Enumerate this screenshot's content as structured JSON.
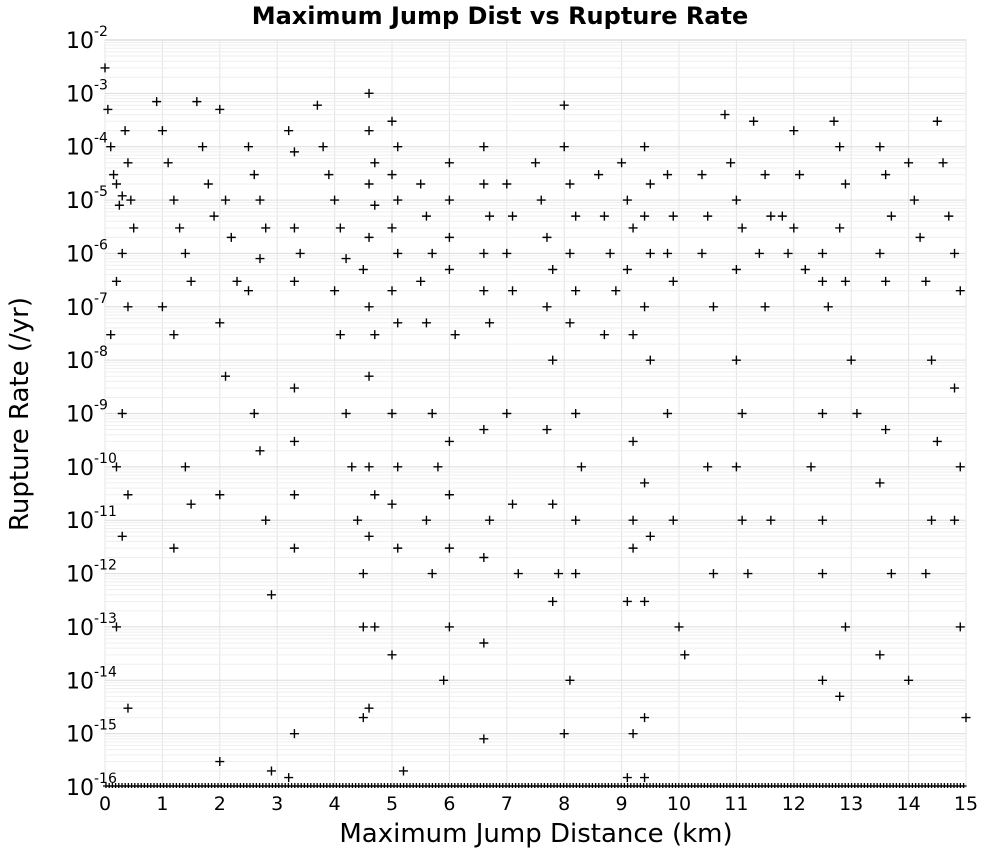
{
  "chart_data": {
    "type": "scatter",
    "title": "Maximum Jump Dist vs Rupture Rate",
    "xlabel": "Maximum Jump Distance (km)",
    "ylabel": "Rupture Rate (/yr)",
    "xlim": [
      0,
      15
    ],
    "ylim": [
      1e-16,
      0.01
    ],
    "y_scale": "log",
    "grid": true,
    "legend": "none",
    "marker": "plus",
    "marker_color": "#000000",
    "x_ticks": [
      "0",
      "1",
      "2",
      "3",
      "4",
      "5",
      "6",
      "7",
      "8",
      "9",
      "10",
      "11",
      "12",
      "13",
      "14",
      "15"
    ],
    "y_ticks": [
      {
        "base": "10",
        "exp": "-2"
      },
      {
        "base": "10",
        "exp": "-3"
      },
      {
        "base": "10",
        "exp": "-4"
      },
      {
        "base": "10",
        "exp": "-5"
      },
      {
        "base": "10",
        "exp": "-6"
      },
      {
        "base": "10",
        "exp": "-7"
      },
      {
        "base": "10",
        "exp": "-8"
      },
      {
        "base": "10",
        "exp": "-9"
      },
      {
        "base": "10",
        "exp": "-10"
      },
      {
        "base": "10",
        "exp": "-11"
      },
      {
        "base": "10",
        "exp": "-12"
      },
      {
        "base": "10",
        "exp": "-13"
      },
      {
        "base": "10",
        "exp": "-14"
      },
      {
        "base": "10",
        "exp": "-15"
      },
      {
        "base": "10",
        "exp": "-16"
      }
    ],
    "points": [
      [
        0.0,
        0.003
      ],
      [
        0.05,
        0.0005
      ],
      [
        0.1,
        0.0001
      ],
      [
        0.15,
        3e-05
      ],
      [
        0.2,
        2e-05
      ],
      [
        0.25,
        8e-06
      ],
      [
        0.3,
        1.2e-05
      ],
      [
        0.35,
        0.0002
      ],
      [
        0.4,
        5e-05
      ],
      [
        0.45,
        1e-05
      ],
      [
        0.5,
        3e-06
      ],
      [
        0.3,
        1e-06
      ],
      [
        0.2,
        3e-07
      ],
      [
        0.4,
        1e-07
      ],
      [
        0.1,
        3e-08
      ],
      [
        0.3,
        1e-09
      ],
      [
        0.2,
        1e-10
      ],
      [
        0.4,
        3e-11
      ],
      [
        0.3,
        5e-12
      ],
      [
        0.2,
        1e-13
      ],
      [
        0.4,
        3e-15
      ],
      [
        0.9,
        0.0007
      ],
      [
        1.0,
        0.0002
      ],
      [
        1.1,
        5e-05
      ],
      [
        1.2,
        1e-05
      ],
      [
        1.3,
        3e-06
      ],
      [
        1.4,
        1e-06
      ],
      [
        1.5,
        3e-07
      ],
      [
        1.0,
        1e-07
      ],
      [
        1.2,
        3e-08
      ],
      [
        1.4,
        1e-10
      ],
      [
        1.5,
        2e-11
      ],
      [
        1.2,
        3e-12
      ],
      [
        1.6,
        0.0007
      ],
      [
        1.7,
        0.0001
      ],
      [
        1.8,
        2e-05
      ],
      [
        1.9,
        5e-06
      ],
      [
        2.0,
        0.0005
      ],
      [
        2.1,
        1e-05
      ],
      [
        2.2,
        2e-06
      ],
      [
        2.3,
        3e-07
      ],
      [
        2.0,
        5e-08
      ],
      [
        2.1,
        5e-09
      ],
      [
        2.0,
        3e-11
      ],
      [
        2.0,
        3e-16
      ],
      [
        2.5,
        0.0001
      ],
      [
        2.6,
        3e-05
      ],
      [
        2.7,
        1e-05
      ],
      [
        2.8,
        3e-06
      ],
      [
        2.7,
        8e-07
      ],
      [
        2.5,
        2e-07
      ],
      [
        2.6,
        1e-09
      ],
      [
        2.7,
        2e-10
      ],
      [
        2.8,
        1e-11
      ],
      [
        2.9,
        4e-13
      ],
      [
        2.9,
        2e-16
      ],
      [
        3.2,
        0.0002
      ],
      [
        3.3,
        8e-05
      ],
      [
        3.3,
        3e-06
      ],
      [
        3.4,
        1e-06
      ],
      [
        3.3,
        3e-07
      ],
      [
        3.3,
        3e-09
      ],
      [
        3.3,
        3e-10
      ],
      [
        3.3,
        3e-11
      ],
      [
        3.3,
        3e-12
      ],
      [
        3.3,
        1e-15
      ],
      [
        3.2,
        1.5e-16
      ],
      [
        3.7,
        0.0006
      ],
      [
        3.8,
        0.0001
      ],
      [
        3.9,
        3e-05
      ],
      [
        4.0,
        1e-05
      ],
      [
        4.1,
        3e-06
      ],
      [
        4.2,
        8e-07
      ],
      [
        4.0,
        2e-07
      ],
      [
        4.1,
        3e-08
      ],
      [
        4.2,
        1e-09
      ],
      [
        4.3,
        1e-10
      ],
      [
        4.4,
        1e-11
      ],
      [
        4.5,
        1e-12
      ],
      [
        4.5,
        1e-13
      ],
      [
        4.5,
        2e-15
      ],
      [
        4.6,
        0.001
      ],
      [
        4.6,
        0.0002
      ],
      [
        4.7,
        5e-05
      ],
      [
        4.6,
        2e-05
      ],
      [
        4.7,
        8e-06
      ],
      [
        4.6,
        2e-06
      ],
      [
        4.5,
        5e-07
      ],
      [
        4.6,
        1e-07
      ],
      [
        4.7,
        3e-08
      ],
      [
        4.6,
        5e-09
      ],
      [
        4.6,
        1e-10
      ],
      [
        4.7,
        3e-11
      ],
      [
        4.6,
        5e-12
      ],
      [
        4.7,
        1e-13
      ],
      [
        4.6,
        3e-15
      ],
      [
        5.0,
        0.0003
      ],
      [
        5.1,
        0.0001
      ],
      [
        5.0,
        3e-05
      ],
      [
        5.1,
        1e-05
      ],
      [
        5.0,
        3e-06
      ],
      [
        5.1,
        1e-06
      ],
      [
        5.0,
        2e-07
      ],
      [
        5.1,
        5e-08
      ],
      [
        5.0,
        1e-09
      ],
      [
        5.1,
        1e-10
      ],
      [
        5.0,
        2e-11
      ],
      [
        5.1,
        3e-12
      ],
      [
        5.0,
        3e-14
      ],
      [
        5.2,
        2e-16
      ],
      [
        5.5,
        2e-05
      ],
      [
        5.6,
        5e-06
      ],
      [
        5.7,
        1e-06
      ],
      [
        5.5,
        3e-07
      ],
      [
        5.6,
        5e-08
      ],
      [
        5.7,
        1e-09
      ],
      [
        5.8,
        1e-10
      ],
      [
        5.6,
        1e-11
      ],
      [
        5.7,
        1e-12
      ],
      [
        5.9,
        1e-14
      ],
      [
        6.0,
        5e-05
      ],
      [
        6.0,
        1e-05
      ],
      [
        6.0,
        2e-06
      ],
      [
        6.0,
        5e-07
      ],
      [
        6.1,
        3e-08
      ],
      [
        6.0,
        3e-10
      ],
      [
        6.0,
        3e-11
      ],
      [
        6.0,
        3e-12
      ],
      [
        6.0,
        1e-13
      ],
      [
        6.6,
        0.0001
      ],
      [
        6.6,
        2e-05
      ],
      [
        6.7,
        5e-06
      ],
      [
        6.6,
        1e-06
      ],
      [
        6.6,
        2e-07
      ],
      [
        6.7,
        5e-08
      ],
      [
        6.6,
        5e-10
      ],
      [
        6.7,
        1e-11
      ],
      [
        6.6,
        2e-12
      ],
      [
        6.6,
        5e-14
      ],
      [
        6.6,
        8e-16
      ],
      [
        7.0,
        2e-05
      ],
      [
        7.1,
        5e-06
      ],
      [
        7.0,
        1e-06
      ],
      [
        7.1,
        2e-07
      ],
      [
        7.0,
        1e-09
      ],
      [
        7.1,
        2e-11
      ],
      [
        7.2,
        1e-12
      ],
      [
        7.5,
        5e-05
      ],
      [
        7.6,
        1e-05
      ],
      [
        7.7,
        2e-06
      ],
      [
        7.8,
        5e-07
      ],
      [
        7.7,
        1e-07
      ],
      [
        7.8,
        1e-08
      ],
      [
        7.7,
        5e-10
      ],
      [
        7.8,
        2e-11
      ],
      [
        7.9,
        1e-12
      ],
      [
        7.8,
        3e-13
      ],
      [
        8.0,
        0.0006
      ],
      [
        8.0,
        0.0001
      ],
      [
        8.1,
        2e-05
      ],
      [
        8.2,
        5e-06
      ],
      [
        8.1,
        1e-06
      ],
      [
        8.2,
        2e-07
      ],
      [
        8.1,
        5e-08
      ],
      [
        8.2,
        1e-09
      ],
      [
        8.3,
        1e-10
      ],
      [
        8.2,
        1e-11
      ],
      [
        8.2,
        1e-12
      ],
      [
        8.1,
        1e-14
      ],
      [
        8.0,
        1e-15
      ],
      [
        8.6,
        3e-05
      ],
      [
        8.7,
        5e-06
      ],
      [
        8.8,
        1e-06
      ],
      [
        8.9,
        2e-07
      ],
      [
        8.7,
        3e-08
      ],
      [
        9.0,
        5e-05
      ],
      [
        9.1,
        1e-05
      ],
      [
        9.2,
        3e-06
      ],
      [
        9.1,
        5e-07
      ],
      [
        9.2,
        3e-08
      ],
      [
        9.2,
        3e-10
      ],
      [
        9.2,
        1e-11
      ],
      [
        9.2,
        3e-12
      ],
      [
        9.1,
        3e-13
      ],
      [
        9.2,
        1e-15
      ],
      [
        9.1,
        1.5e-16
      ],
      [
        9.4,
        0.0001
      ],
      [
        9.5,
        2e-05
      ],
      [
        9.4,
        5e-06
      ],
      [
        9.5,
        1e-06
      ],
      [
        9.4,
        1e-07
      ],
      [
        9.5,
        1e-08
      ],
      [
        9.4,
        5e-11
      ],
      [
        9.5,
        5e-12
      ],
      [
        9.4,
        3e-13
      ],
      [
        9.4,
        2e-15
      ],
      [
        9.4,
        1.5e-16
      ],
      [
        9.8,
        3e-05
      ],
      [
        9.9,
        5e-06
      ],
      [
        9.8,
        1e-06
      ],
      [
        9.9,
        3e-07
      ],
      [
        9.8,
        1e-09
      ],
      [
        9.9,
        1e-11
      ],
      [
        10.0,
        1e-13
      ],
      [
        10.1,
        3e-14
      ],
      [
        10.4,
        3e-05
      ],
      [
        10.5,
        5e-06
      ],
      [
        10.4,
        1e-06
      ],
      [
        10.6,
        1e-07
      ],
      [
        10.5,
        1e-10
      ],
      [
        10.6,
        1e-12
      ],
      [
        10.8,
        0.0004
      ],
      [
        10.9,
        5e-05
      ],
      [
        11.0,
        1e-05
      ],
      [
        11.1,
        3e-06
      ],
      [
        11.0,
        5e-07
      ],
      [
        11.0,
        1e-08
      ],
      [
        11.1,
        1e-09
      ],
      [
        11.0,
        1e-10
      ],
      [
        11.1,
        1e-11
      ],
      [
        11.2,
        1e-12
      ],
      [
        11.3,
        0.0003
      ],
      [
        11.5,
        3e-05
      ],
      [
        11.6,
        5e-06
      ],
      [
        11.4,
        1e-06
      ],
      [
        11.5,
        1e-07
      ],
      [
        11.6,
        1e-11
      ],
      [
        11.8,
        5e-06
      ],
      [
        11.9,
        1e-06
      ],
      [
        12.0,
        0.0002
      ],
      [
        12.1,
        3e-05
      ],
      [
        12.0,
        3e-06
      ],
      [
        12.2,
        5e-07
      ],
      [
        12.3,
        1e-10
      ],
      [
        12.5,
        1e-06
      ],
      [
        12.5,
        3e-07
      ],
      [
        12.6,
        1e-07
      ],
      [
        12.5,
        1e-09
      ],
      [
        12.5,
        1e-11
      ],
      [
        12.5,
        1e-12
      ],
      [
        12.5,
        1e-14
      ],
      [
        12.7,
        0.0003
      ],
      [
        12.8,
        0.0001
      ],
      [
        12.9,
        2e-05
      ],
      [
        12.8,
        3e-06
      ],
      [
        12.9,
        3e-07
      ],
      [
        13.0,
        1e-08
      ],
      [
        13.1,
        1e-09
      ],
      [
        12.9,
        1e-13
      ],
      [
        12.8,
        5e-15
      ],
      [
        13.5,
        0.0001
      ],
      [
        13.6,
        3e-05
      ],
      [
        13.7,
        5e-06
      ],
      [
        13.5,
        1e-06
      ],
      [
        13.6,
        3e-07
      ],
      [
        13.6,
        5e-10
      ],
      [
        13.5,
        5e-11
      ],
      [
        13.7,
        1e-12
      ],
      [
        13.5,
        3e-14
      ],
      [
        14.0,
        5e-05
      ],
      [
        14.1,
        1e-05
      ],
      [
        14.2,
        2e-06
      ],
      [
        14.3,
        3e-07
      ],
      [
        14.4,
        1e-08
      ],
      [
        14.5,
        3e-10
      ],
      [
        14.4,
        1e-11
      ],
      [
        14.3,
        1e-12
      ],
      [
        14.0,
        1e-14
      ],
      [
        14.5,
        0.0003
      ],
      [
        14.6,
        5e-05
      ],
      [
        14.7,
        5e-06
      ],
      [
        14.8,
        1e-06
      ],
      [
        14.9,
        2e-07
      ],
      [
        14.8,
        3e-09
      ],
      [
        14.9,
        1e-10
      ],
      [
        14.8,
        1e-11
      ],
      [
        14.9,
        1e-13
      ],
      [
        15.0,
        2e-15
      ]
    ]
  }
}
